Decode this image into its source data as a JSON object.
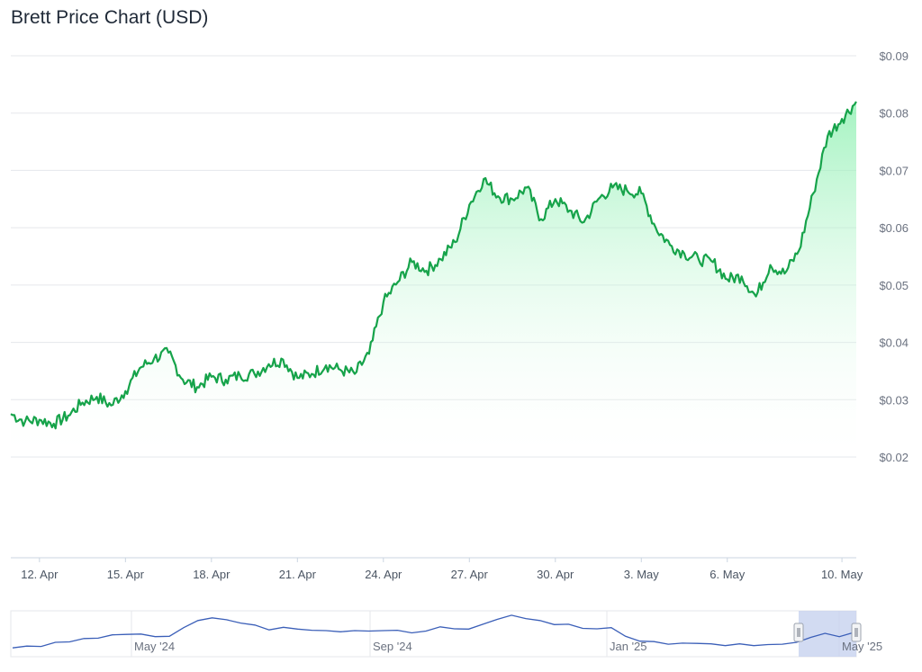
{
  "page_title": "Brett Price Chart (USD)",
  "colors": {
    "line": "#16a34a",
    "area_top": "#86efac",
    "grid": "#e5e7eb",
    "navigator_line": "#3b5fb8",
    "navigator_mask": "#c7d2ef"
  },
  "chart_data": [
    {
      "type": "area",
      "title": "Brett Price Chart (USD)",
      "xlabel": "",
      "ylabel": "",
      "ylim": [
        0.02,
        0.09
      ],
      "y_ticks": [
        "$0.02",
        "$0.03",
        "$0.04",
        "$0.05",
        "$0.06",
        "$0.07",
        "$0.08",
        "$0.09"
      ],
      "x_ticks": [
        "12. Apr",
        "15. Apr",
        "18. Apr",
        "21. Apr",
        "24. Apr",
        "27. Apr",
        "30. Apr",
        "3. May",
        "6. May",
        "10. May"
      ],
      "grid": true,
      "series": [
        {
          "x": [
            "2025-04-11",
            "2025-04-11T12",
            "2025-04-12",
            "2025-04-12T12",
            "2025-04-13",
            "2025-04-13T12",
            "2025-04-14",
            "2025-04-14T12",
            "2025-04-15",
            "2025-04-15T12",
            "2025-04-16",
            "2025-04-16T12",
            "2025-04-17",
            "2025-04-17T12",
            "2025-04-18",
            "2025-04-18T12",
            "2025-04-19",
            "2025-04-19T12",
            "2025-04-20",
            "2025-04-20T12",
            "2025-04-21",
            "2025-04-21T12",
            "2025-04-22",
            "2025-04-22T12",
            "2025-04-23",
            "2025-04-23T12",
            "2025-04-24",
            "2025-04-24T12",
            "2025-04-25",
            "2025-04-25T12",
            "2025-04-26",
            "2025-04-26T12",
            "2025-04-27",
            "2025-04-27T12",
            "2025-04-28",
            "2025-04-28T12",
            "2025-04-29",
            "2025-04-29T12",
            "2025-04-30",
            "2025-04-30T12",
            "2025-05-01",
            "2025-05-01T12",
            "2025-05-02",
            "2025-05-02T12",
            "2025-05-03",
            "2025-05-03T12",
            "2025-05-04",
            "2025-05-04T12",
            "2025-05-05",
            "2025-05-05T12",
            "2025-05-06",
            "2025-05-06T12",
            "2025-05-07",
            "2025-05-07T12",
            "2025-05-08",
            "2025-05-08T12",
            "2025-05-09",
            "2025-05-09T12",
            "2025-05-10",
            "2025-05-10T12"
          ],
          "values": [
            0.0275,
            0.0262,
            0.0265,
            0.0258,
            0.0272,
            0.0295,
            0.0305,
            0.029,
            0.0315,
            0.0355,
            0.0372,
            0.0382,
            0.0335,
            0.0322,
            0.034,
            0.0335,
            0.0342,
            0.0345,
            0.0362,
            0.037,
            0.0338,
            0.0345,
            0.036,
            0.0352,
            0.0345,
            0.038,
            0.047,
            0.0505,
            0.054,
            0.0525,
            0.0545,
            0.0575,
            0.064,
            0.0685,
            0.0655,
            0.065,
            0.067,
            0.0615,
            0.065,
            0.063,
            0.061,
            0.065,
            0.067,
            0.0665,
            0.066,
            0.06,
            0.057,
            0.0555,
            0.0545,
            0.054,
            0.051,
            0.0515,
            0.048,
            0.0535,
            0.052,
            0.056,
            0.066,
            0.076,
            0.079,
            0.082
          ]
        }
      ]
    },
    {
      "type": "line",
      "role": "navigator",
      "x_ticks": [
        "May '24",
        "Sep '24",
        "Jan '25",
        "May '25"
      ],
      "series": [
        {
          "values": [
            0.01,
            0.011,
            0.012,
            0.016,
            0.018,
            0.021,
            0.023,
            0.026,
            0.028,
            0.027,
            0.025,
            0.024,
            0.037,
            0.045,
            0.05,
            0.046,
            0.043,
            0.039,
            0.034,
            0.036,
            0.035,
            0.032,
            0.033,
            0.03,
            0.033,
            0.031,
            0.033,
            0.032,
            0.03,
            0.031,
            0.038,
            0.034,
            0.035,
            0.04,
            0.048,
            0.052,
            0.049,
            0.045,
            0.041,
            0.04,
            0.036,
            0.034,
            0.037,
            0.024,
            0.019,
            0.017,
            0.015,
            0.015,
            0.016,
            0.014,
            0.013,
            0.014,
            0.013,
            0.013,
            0.015,
            0.016,
            0.024,
            0.028,
            0.025,
            0.029
          ]
        }
      ]
    }
  ]
}
